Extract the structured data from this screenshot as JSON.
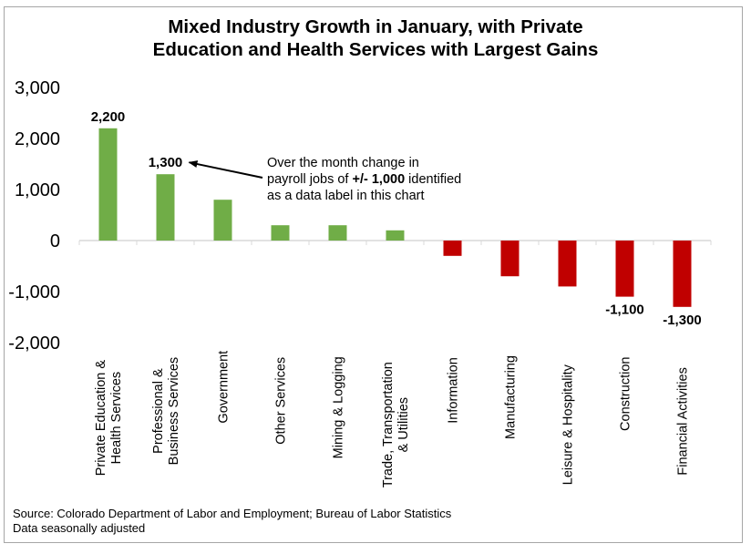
{
  "chart_data": {
    "type": "bar",
    "title": "Mixed Industry Growth in January, with Private Education and Health Services with Largest Gains",
    "title_lines": [
      "Mixed Industry Growth in January, with Private",
      "Education and Health Services with Largest Gains"
    ],
    "xlabel": "",
    "ylabel": "",
    "ylim": [
      -2000,
      3000
    ],
    "yticks": [
      3000,
      2000,
      1000,
      0,
      -1000,
      -2000
    ],
    "ytick_labels": [
      "3,000",
      "2,000",
      "1,000",
      "0",
      "-1,000",
      "-2,000"
    ],
    "grid": false,
    "legend": "none",
    "categories": [
      [
        "Private Education &",
        "Health Services"
      ],
      [
        "Professional &",
        "Business Services"
      ],
      [
        "Government"
      ],
      [
        "Other Services"
      ],
      [
        "Mining & Logging"
      ],
      [
        "Trade, Transportation",
        "& Utilities"
      ],
      [
        "Information"
      ],
      [
        "Manufacturing"
      ],
      [
        "Leisure & Hospitality"
      ],
      [
        "Construction"
      ],
      [
        "Financial Activities"
      ]
    ],
    "values": [
      2200,
      1300,
      800,
      300,
      300,
      200,
      -300,
      -700,
      -900,
      -1100,
      -1300
    ],
    "data_labels": [
      "2,200",
      "1,300",
      null,
      null,
      null,
      null,
      null,
      null,
      null,
      "-1,100",
      "-1,300"
    ],
    "colors": {
      "positive": "#70AD47",
      "negative": "#C00000"
    },
    "annotation": {
      "text_before": "Over the month change in",
      "line2_before": "payroll jobs of ",
      "line2_bold": "+/- 1,000",
      "line2_after": " identified",
      "line3": "as a data label in this chart",
      "arrow_target_category": 1
    }
  },
  "footer": {
    "source": "Source: Colorado Department of Labor and Employment; Bureau of Labor Statistics",
    "note": "Data seasonally adjusted"
  }
}
